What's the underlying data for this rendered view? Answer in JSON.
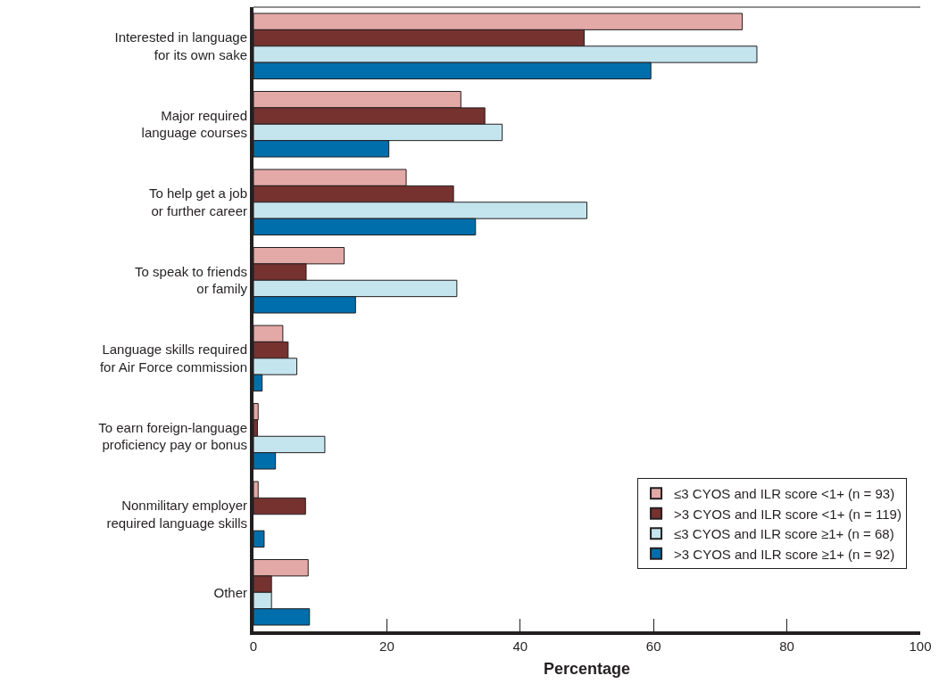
{
  "chart_data": {
    "type": "bar",
    "orientation": "horizontal",
    "xlabel": "Percentage",
    "categories": [
      "Interested in language\nfor its own sake",
      "Major required\nlanguage courses",
      "To help get a job\nor further career",
      "To speak to friends\nor family",
      "Language skills required\nfor Air Force commission",
      "To earn foreign-language\nproficiency pay or bonus",
      "Nonmilitary employer\nrequired language skills",
      "Other"
    ],
    "series": [
      {
        "name": "≤3 CYOS and ILR score <1+ (n = 93)",
        "color": "#e3a9a6",
        "values": [
          73.3,
          31.1,
          22.9,
          13.6,
          4.4,
          0.7,
          0.7,
          8.2
        ]
      },
      {
        "name": ">3 CYOS and ILR score <1+ (n = 119)",
        "color": "#76322f",
        "values": [
          49.6,
          34.7,
          30.0,
          7.9,
          5.2,
          0.6,
          7.8,
          2.7
        ]
      },
      {
        "name": "≤3 CYOS and ILR score ≥1+ (n = 68)",
        "color": "#c5e5ee",
        "values": [
          75.5,
          37.3,
          50.0,
          30.5,
          6.5,
          10.7,
          null,
          2.7
        ]
      },
      {
        "name": ">3 CYOS and ILR score ≥1+ (n = 92)",
        "color": "#006eab",
        "values": [
          59.6,
          20.3,
          33.3,
          15.3,
          1.3,
          3.3,
          1.6,
          8.4
        ]
      }
    ],
    "xlim": [
      0,
      100
    ],
    "xticks": [
      0,
      20,
      40,
      60,
      80,
      100
    ],
    "legend": "bottom right"
  }
}
